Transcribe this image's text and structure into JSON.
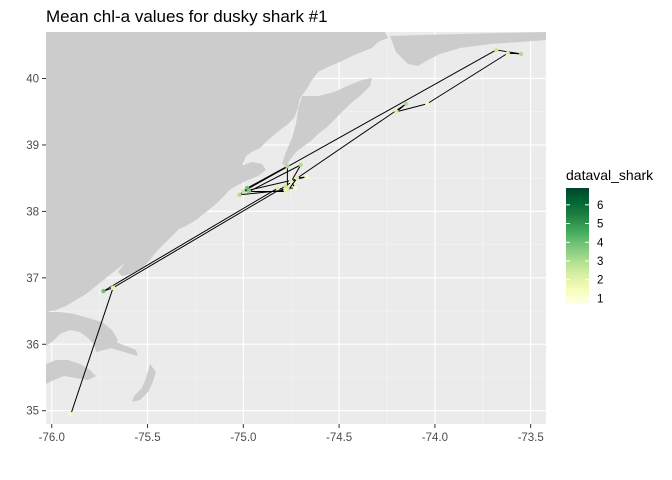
{
  "title": "Mean chl-a values for dusky shark #1",
  "x_ticks": [
    {
      "value": -76.0,
      "label": "-76.0"
    },
    {
      "value": -75.5,
      "label": "-75.5"
    },
    {
      "value": -75.0,
      "label": "-75.0"
    },
    {
      "value": -74.5,
      "label": "-74.5"
    },
    {
      "value": -74.0,
      "label": "-74.0"
    },
    {
      "value": -73.5,
      "label": "-73.5"
    }
  ],
  "y_ticks": [
    {
      "value": 35,
      "label": "35"
    },
    {
      "value": 36,
      "label": "36"
    },
    {
      "value": 37,
      "label": "37"
    },
    {
      "value": 38,
      "label": "38"
    },
    {
      "value": 39,
      "label": "39"
    },
    {
      "value": 40,
      "label": "40"
    }
  ],
  "axis_ranges": {
    "lon": [
      -76.03,
      -73.42
    ],
    "lat": [
      34.8,
      40.7
    ]
  },
  "grid": true,
  "legend": {
    "title": "dataval_shark",
    "placement": "right",
    "range": [
      0.7,
      6.9
    ],
    "labels": [
      {
        "value": 1,
        "label": "1"
      },
      {
        "value": 2,
        "label": "2"
      },
      {
        "value": 3,
        "label": "3"
      },
      {
        "value": 4,
        "label": "4"
      },
      {
        "value": 5,
        "label": "5"
      },
      {
        "value": 6,
        "label": "6"
      }
    ]
  },
  "colors": {
    "panel_background": "#ebebeb",
    "grid_major": "#ffffff",
    "land": "#cccccc",
    "track_line": "#000000",
    "scale": [
      "#ffffe5",
      "#f7fcb9",
      "#d9f0a3",
      "#addd8e",
      "#78c679",
      "#41ab5d",
      "#238443",
      "#006837",
      "#004529"
    ]
  },
  "chart_data": {
    "type": "scatter",
    "xlabel": "",
    "ylabel": "",
    "xlim": [
      -76.03,
      -73.42
    ],
    "ylim": [
      34.8,
      40.7
    ],
    "color_variable": "dataval_shark",
    "track": [
      {
        "lon": -75.9,
        "lat": 34.95,
        "chl": 1.5
      },
      {
        "lon": -75.68,
        "lat": 36.85,
        "chl": 2.0
      },
      {
        "lon": -75.73,
        "lat": 36.8,
        "chl": 4.0
      },
      {
        "lon": -74.82,
        "lat": 38.35,
        "chl": 2.0
      },
      {
        "lon": -74.78,
        "lat": 38.32,
        "chl": 1.5
      },
      {
        "lon": -75.02,
        "lat": 38.25,
        "chl": 3.0
      },
      {
        "lon": -74.98,
        "lat": 38.35,
        "chl": 4.0
      },
      {
        "lon": -74.77,
        "lat": 38.68,
        "chl": 3.0
      },
      {
        "lon": -74.77,
        "lat": 38.35,
        "chl": 2.0
      },
      {
        "lon": -74.73,
        "lat": 38.35,
        "chl": 1.0
      },
      {
        "lon": -74.75,
        "lat": 38.45,
        "chl": 1.5
      },
      {
        "lon": -74.7,
        "lat": 38.7,
        "chl": 3.0
      },
      {
        "lon": -74.97,
        "lat": 38.3,
        "chl": 3.5
      },
      {
        "lon": -74.77,
        "lat": 38.3,
        "chl": 2.0
      },
      {
        "lon": -74.72,
        "lat": 38.5,
        "chl": 2.0
      },
      {
        "lon": -74.67,
        "lat": 38.52,
        "chl": 1.0
      },
      {
        "lon": -75.0,
        "lat": 38.3,
        "chl": 2.5
      },
      {
        "lon": -73.68,
        "lat": 40.43,
        "chl": 2.5
      },
      {
        "lon": -73.55,
        "lat": 40.37,
        "chl": 3.0
      },
      {
        "lon": -73.62,
        "lat": 40.38,
        "chl": 2.0
      },
      {
        "lon": -74.04,
        "lat": 39.62,
        "chl": 1.5
      },
      {
        "lon": -74.2,
        "lat": 39.5,
        "chl": 2.0
      },
      {
        "lon": -74.15,
        "lat": 39.62,
        "chl": 3.0
      },
      {
        "lon": -74.78,
        "lat": 38.38,
        "chl": 2.5
      },
      {
        "lon": -75.68,
        "lat": 36.85,
        "chl": 2.0
      }
    ]
  }
}
